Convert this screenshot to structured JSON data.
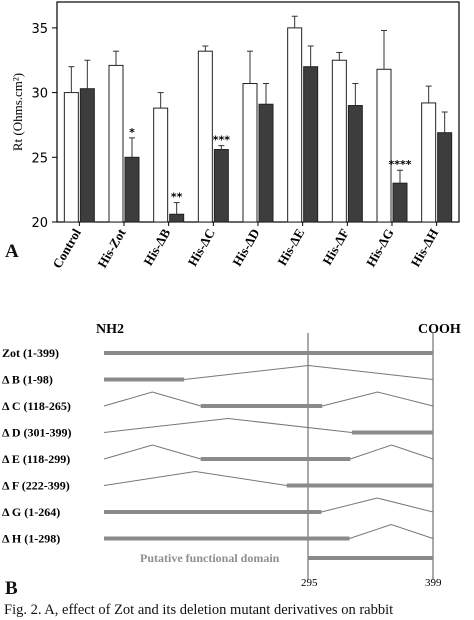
{
  "chart_data": {
    "type": "bar",
    "ylabel": "Rt (Ohms.cm²)",
    "ylim": [
      20,
      37
    ],
    "yticks": [
      20,
      25,
      30,
      35
    ],
    "categories": [
      "Control",
      "His-Zot",
      "His-ΔB",
      "His-ΔC",
      "His-ΔD",
      "His-ΔE",
      "His-ΔF",
      "His-ΔG",
      "His-ΔH"
    ],
    "series": [
      {
        "fill": "#ffffff",
        "values": [
          30.0,
          32.1,
          28.8,
          33.2,
          30.7,
          35.0,
          32.5,
          31.8,
          29.2
        ],
        "errors": [
          2.0,
          1.1,
          1.2,
          0.4,
          2.5,
          0.9,
          0.6,
          3.0,
          1.3
        ]
      },
      {
        "fill": "#3d3d3d",
        "values": [
          30.3,
          25.0,
          20.6,
          25.6,
          29.1,
          32.0,
          29.0,
          23.0,
          26.9
        ],
        "errors": [
          2.2,
          1.5,
          0.9,
          0.3,
          1.6,
          1.6,
          1.7,
          1.0,
          1.6
        ]
      }
    ],
    "annotations": [
      {
        "category": 1,
        "text": "*"
      },
      {
        "category": 2,
        "text": "**"
      },
      {
        "category": 3,
        "text": "***"
      },
      {
        "category": 7,
        "text": "****"
      }
    ]
  },
  "panelA": {
    "letter": "A"
  },
  "panelB": {
    "letter": "B",
    "nh2": "NH2",
    "cooh": "COOH",
    "constructs": [
      {
        "label": "Zot (1-399)",
        "segments": [
          [
            1,
            399
          ]
        ]
      },
      {
        "label": "Δ B (1-98)",
        "segments": [
          [
            1,
            98
          ]
        ]
      },
      {
        "label": "Δ C (118-265)",
        "segments": [
          [
            118,
            265
          ]
        ]
      },
      {
        "label": "Δ D (301-399)",
        "segments": [
          [
            301,
            399
          ]
        ]
      },
      {
        "label": "Δ E (118-299)",
        "segments": [
          [
            118,
            299
          ]
        ]
      },
      {
        "label": "Δ F (222-399)",
        "segments": [
          [
            222,
            399
          ]
        ]
      },
      {
        "label": "Δ G (1-264)",
        "segments": [
          [
            1,
            264
          ]
        ]
      },
      {
        "label": "Δ H (1-298)",
        "segments": [
          [
            1,
            298
          ]
        ]
      }
    ],
    "domain_label": "Putative  functional domain",
    "marker_295": "295",
    "marker_399": "399"
  },
  "caption": "Fig. 2. A, effect of Zot and its deletion mutant derivatives on rabbit"
}
